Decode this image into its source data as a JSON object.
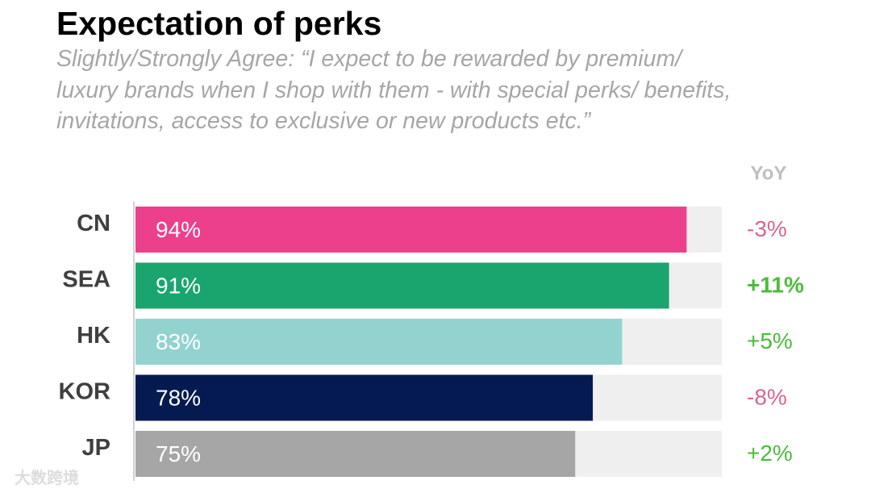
{
  "chart_data": {
    "type": "bar",
    "orientation": "horizontal",
    "title": "Expectation of perks",
    "subtitle": "Slightly/Strongly Agree: “I expect to be rewarded by premium/ luxury brands when I shop with them - with special perks/ benefits, invitations, access to exclusive or new products etc.”",
    "categories": [
      "CN",
      "SEA",
      "HK",
      "KOR",
      "JP"
    ],
    "values": [
      94,
      91,
      83,
      78,
      75
    ],
    "value_labels": [
      "94%",
      "91%",
      "83%",
      "78%",
      "75%"
    ],
    "colors": [
      "#ec408c",
      "#1aa56f",
      "#93d3cf",
      "#051a50",
      "#a6a6a6"
    ],
    "track_color": "#efefef",
    "xlim": [
      0,
      100
    ],
    "yoy": {
      "title": "YoY",
      "values": [
        -3,
        11,
        5,
        -8,
        2
      ],
      "value_labels": [
        "-3%",
        "+11%",
        "+5%",
        "-8%",
        "+2%"
      ],
      "colors": [
        "#d9658f",
        "#4cbb3a",
        "#4cbb3a",
        "#d9658f",
        "#4cbb3a"
      ],
      "highlight_index": 1
    },
    "watermark": "大数跨境"
  }
}
